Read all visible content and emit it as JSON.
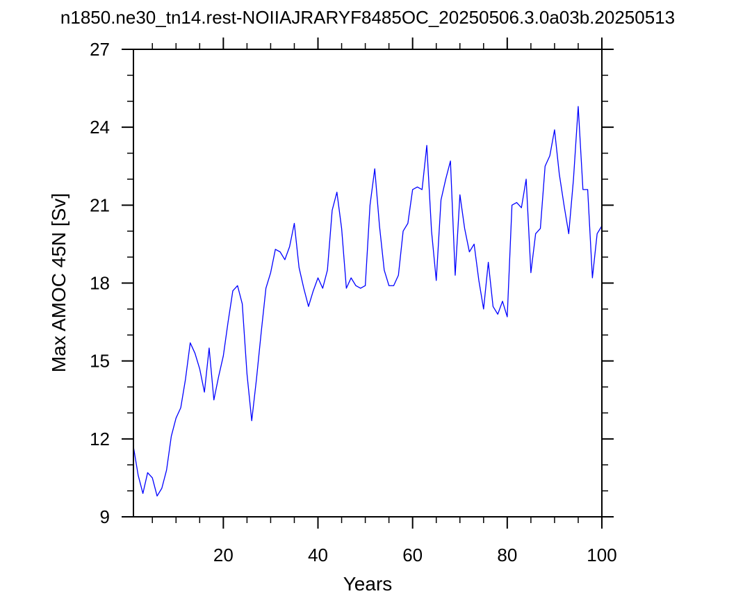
{
  "chart_data": {
    "type": "line",
    "title": "n1850.ne30_tn14.rest-NOIIAJRARYF8485OC_20250506.3.0a03b.20250513",
    "xlabel": "Years",
    "ylabel": "Max AMOC 45N [Sv]",
    "xlim": [
      1,
      100
    ],
    "ylim": [
      9,
      27
    ],
    "xticks": [
      20,
      40,
      60,
      80,
      100
    ],
    "yticks": [
      9,
      12,
      15,
      18,
      21,
      24,
      27
    ],
    "grid": false,
    "series": [
      {
        "color": "#0000ff",
        "x": [
          1,
          2,
          3,
          4,
          5,
          6,
          7,
          8,
          9,
          10,
          11,
          12,
          13,
          14,
          15,
          16,
          17,
          18,
          19,
          20,
          21,
          22,
          23,
          24,
          25,
          26,
          27,
          28,
          29,
          30,
          31,
          32,
          33,
          34,
          35,
          36,
          37,
          38,
          39,
          40,
          41,
          42,
          43,
          44,
          45,
          46,
          47,
          48,
          49,
          50,
          51,
          52,
          53,
          54,
          55,
          56,
          57,
          58,
          59,
          60,
          61,
          62,
          63,
          64,
          65,
          66,
          67,
          68,
          69,
          70,
          71,
          72,
          73,
          74,
          75,
          76,
          77,
          78,
          79,
          80,
          81,
          82,
          83,
          84,
          85,
          86,
          87,
          88,
          89,
          90,
          91,
          92,
          93,
          94,
          95,
          96,
          97,
          98,
          99,
          100
        ],
        "values": [
          11.7,
          10.6,
          9.9,
          10.7,
          10.5,
          9.8,
          10.1,
          10.8,
          12.1,
          12.8,
          13.2,
          14.3,
          15.7,
          15.3,
          14.7,
          13.8,
          15.5,
          13.5,
          14.4,
          15.2,
          16.5,
          17.7,
          17.9,
          17.2,
          14.5,
          12.7,
          14.3,
          16.1,
          17.8,
          18.4,
          19.3,
          19.2,
          18.9,
          19.4,
          20.3,
          18.6,
          17.8,
          17.1,
          17.7,
          18.2,
          17.8,
          18.5,
          20.8,
          21.5,
          20.1,
          17.8,
          18.2,
          17.9,
          17.8,
          17.9,
          21.0,
          22.4,
          20.2,
          18.5,
          17.9,
          17.9,
          18.3,
          20.0,
          20.3,
          21.6,
          21.7,
          21.6,
          23.3,
          20.0,
          18.1,
          21.2,
          22.0,
          22.7,
          18.3,
          21.4,
          20.1,
          19.2,
          19.5,
          18.1,
          17.0,
          18.8,
          17.1,
          16.8,
          17.3,
          16.7,
          21.0,
          21.1,
          20.9,
          22.0,
          18.4,
          19.9,
          20.1,
          22.5,
          22.9,
          23.9,
          22.2,
          21.0,
          19.9,
          22.0,
          24.8,
          21.6,
          21.6,
          18.2,
          19.9,
          20.2
        ]
      }
    ]
  }
}
